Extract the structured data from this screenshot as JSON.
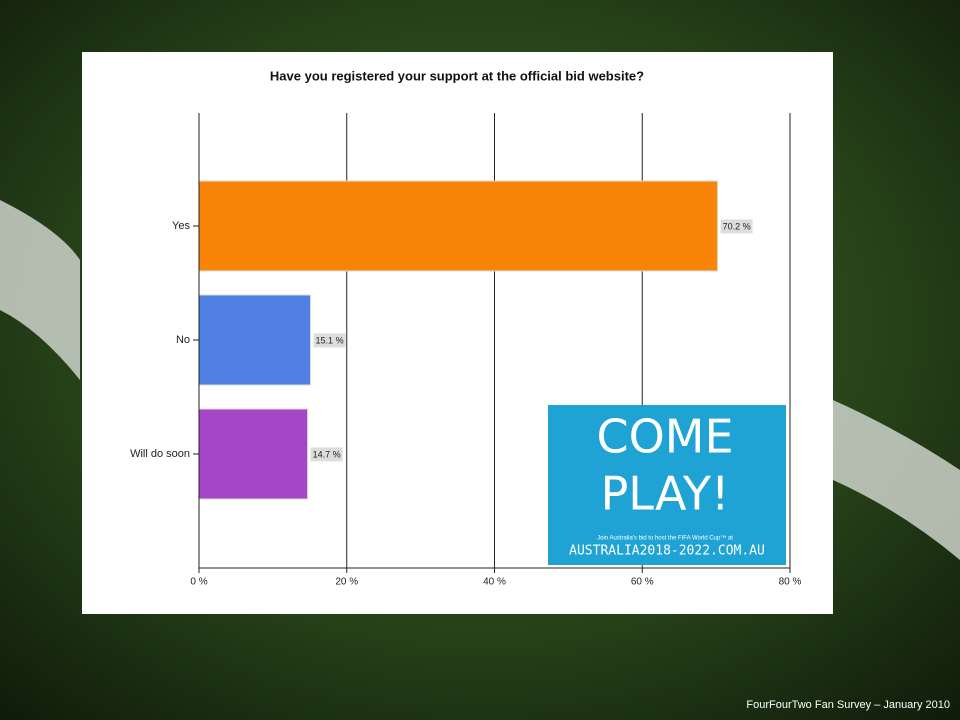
{
  "chart_data": {
    "type": "hbar",
    "title": "Have you registered your support at the official bid website?",
    "categories": [
      "Yes",
      "No",
      "Will do soon"
    ],
    "values": [
      70.2,
      15.1,
      14.7
    ],
    "value_labels": [
      "70.2 %",
      "15.1 %",
      "14.7 %"
    ],
    "colors": [
      "#f98508",
      "#4f7fe0",
      "#a545c8"
    ],
    "xlim": [
      0,
      80
    ],
    "xticks": [
      {
        "value": 0,
        "label": "0 %"
      },
      {
        "value": 20,
        "label": "20 %"
      },
      {
        "value": 40,
        "label": "40 %"
      },
      {
        "value": 60,
        "label": "60 %"
      },
      {
        "value": 80,
        "label": "80 %"
      }
    ],
    "grid": true
  },
  "logo": {
    "line1": "COME",
    "line2": "PLAY!",
    "tagline": "Join Australia's bid to host the FIFA World Cup™ at",
    "url": "AUSTRALIA2018-2022.COM.AU"
  },
  "footer": "FourFourTwo Fan Survey – January 2010"
}
